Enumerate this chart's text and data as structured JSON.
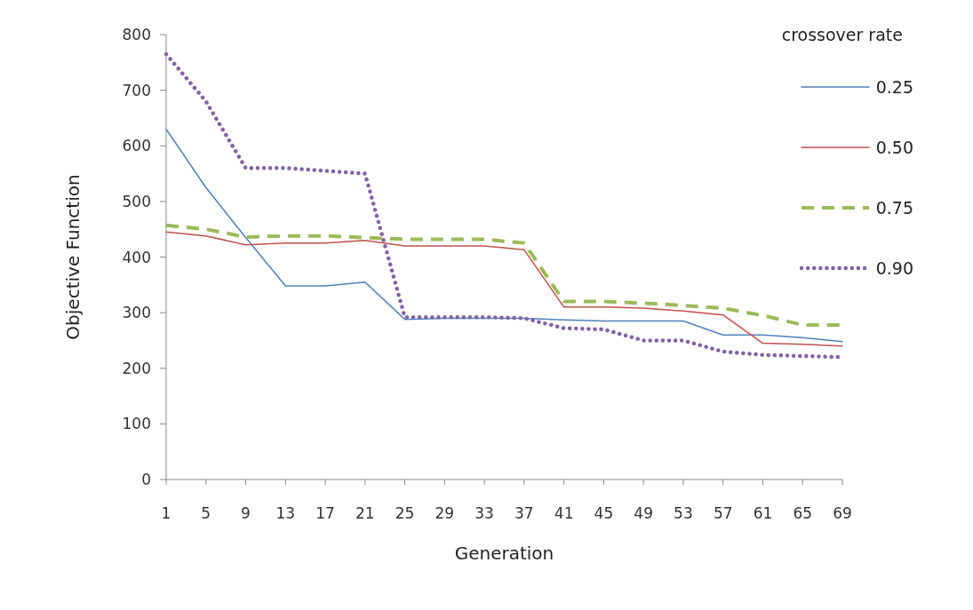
{
  "chart_data": {
    "type": "line",
    "xlabel": "Generation",
    "ylabel": "Objective Function",
    "legend_title": "crossover rate",
    "legend": "top right",
    "grid": false,
    "marker": "none",
    "categories": [
      "1",
      "5",
      "9",
      "13",
      "17",
      "21",
      "25",
      "29",
      "33",
      "37",
      "41",
      "45",
      "49",
      "53",
      "57",
      "61",
      "65",
      "69"
    ],
    "ylim": [
      0,
      800
    ],
    "yticks": [
      0,
      100,
      200,
      300,
      400,
      500,
      600,
      700,
      800
    ],
    "series": [
      {
        "name": "0.25",
        "color": "#4f81bd",
        "line_style": "solid",
        "values": [
          630,
          525,
          435,
          348,
          348,
          355,
          288,
          290,
          290,
          290,
          287,
          285,
          285,
          285,
          260,
          260,
          255,
          248
        ]
      },
      {
        "name": "0.50",
        "color": "#c0504d",
        "line_style": "solid",
        "values": [
          445,
          438,
          422,
          425,
          425,
          430,
          420,
          420,
          420,
          413,
          310,
          310,
          308,
          303,
          296,
          245,
          243,
          240
        ]
      },
      {
        "name": "0.75",
        "color": "#9bbb59",
        "line_style": "dashed",
        "values": [
          457,
          450,
          436,
          438,
          438,
          435,
          432,
          432,
          432,
          425,
          320,
          320,
          317,
          313,
          308,
          295,
          278,
          278
        ]
      },
      {
        "name": "0.90",
        "color": "#8064a2",
        "line_style": "dotted",
        "values": [
          765,
          680,
          560,
          560,
          555,
          550,
          292,
          292,
          292,
          290,
          272,
          270,
          250,
          250,
          230,
          224,
          222,
          220
        ]
      }
    ]
  }
}
